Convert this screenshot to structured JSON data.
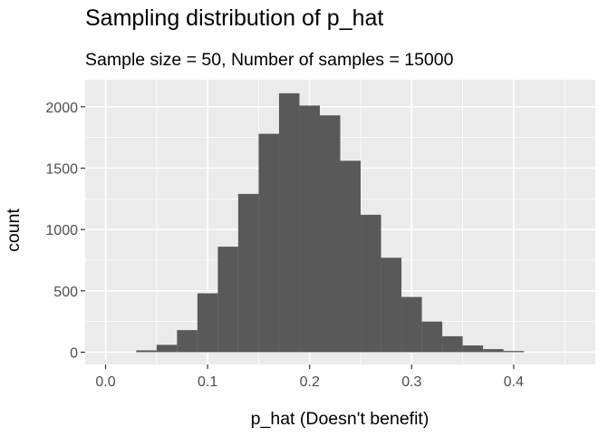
{
  "chart_data": {
    "type": "bar",
    "title": "Sampling distribution of p_hat",
    "subtitle": "Sample size = 50, Number of samples = 15000",
    "xlabel": "p_hat (Doesn't benefit)",
    "ylabel": "count",
    "xlim": [
      -0.02,
      0.48
    ],
    "ylim": [
      -100,
      2220
    ],
    "x_ticks": [
      0.0,
      0.1,
      0.2,
      0.3,
      0.4
    ],
    "x_tick_labels": [
      "0.0",
      "0.1",
      "0.2",
      "0.3",
      "0.4"
    ],
    "y_ticks": [
      0,
      500,
      1000,
      1500,
      2000
    ],
    "y_tick_labels": [
      "0",
      "500",
      "1000",
      "1500",
      "2000"
    ],
    "grid": true,
    "bin_width": 0.02,
    "bin_centers": [
      0.04,
      0.06,
      0.08,
      0.1,
      0.12,
      0.14,
      0.16,
      0.18,
      0.2,
      0.22,
      0.24,
      0.26,
      0.28,
      0.3,
      0.32,
      0.34,
      0.36,
      0.38,
      0.4
    ],
    "values": [
      15,
      60,
      180,
      480,
      860,
      1290,
      1780,
      2110,
      2010,
      1930,
      1560,
      1120,
      770,
      450,
      250,
      130,
      55,
      25,
      10
    ],
    "bar_color": "#595959",
    "panel_color": "#ebebeb",
    "grid_color": "#ffffff"
  }
}
